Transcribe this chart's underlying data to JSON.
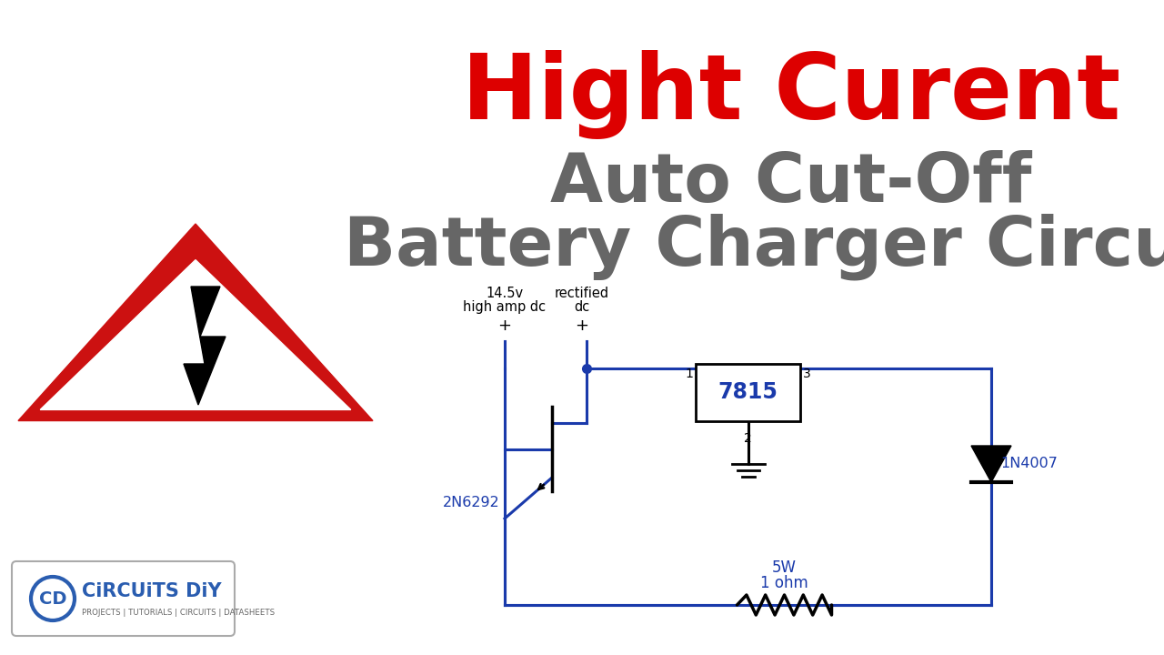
{
  "bg_color": "#ffffff",
  "title_line1": "Hight Curent",
  "title_line2": "Auto Cut-Off",
  "title_line3": "Battery Charger Circuit",
  "title_color1": "#dd0000",
  "title_color2": "#666666",
  "title_color3": "#666666",
  "circuit_color": "#1a3aab",
  "circuit_black": "#000000",
  "label_color": "#1a3aab",
  "warning_red": "#cc1111",
  "warning_white": "#ffffff",
  "logo_blue": "#2a5db0",
  "logo_gray": "#666666"
}
